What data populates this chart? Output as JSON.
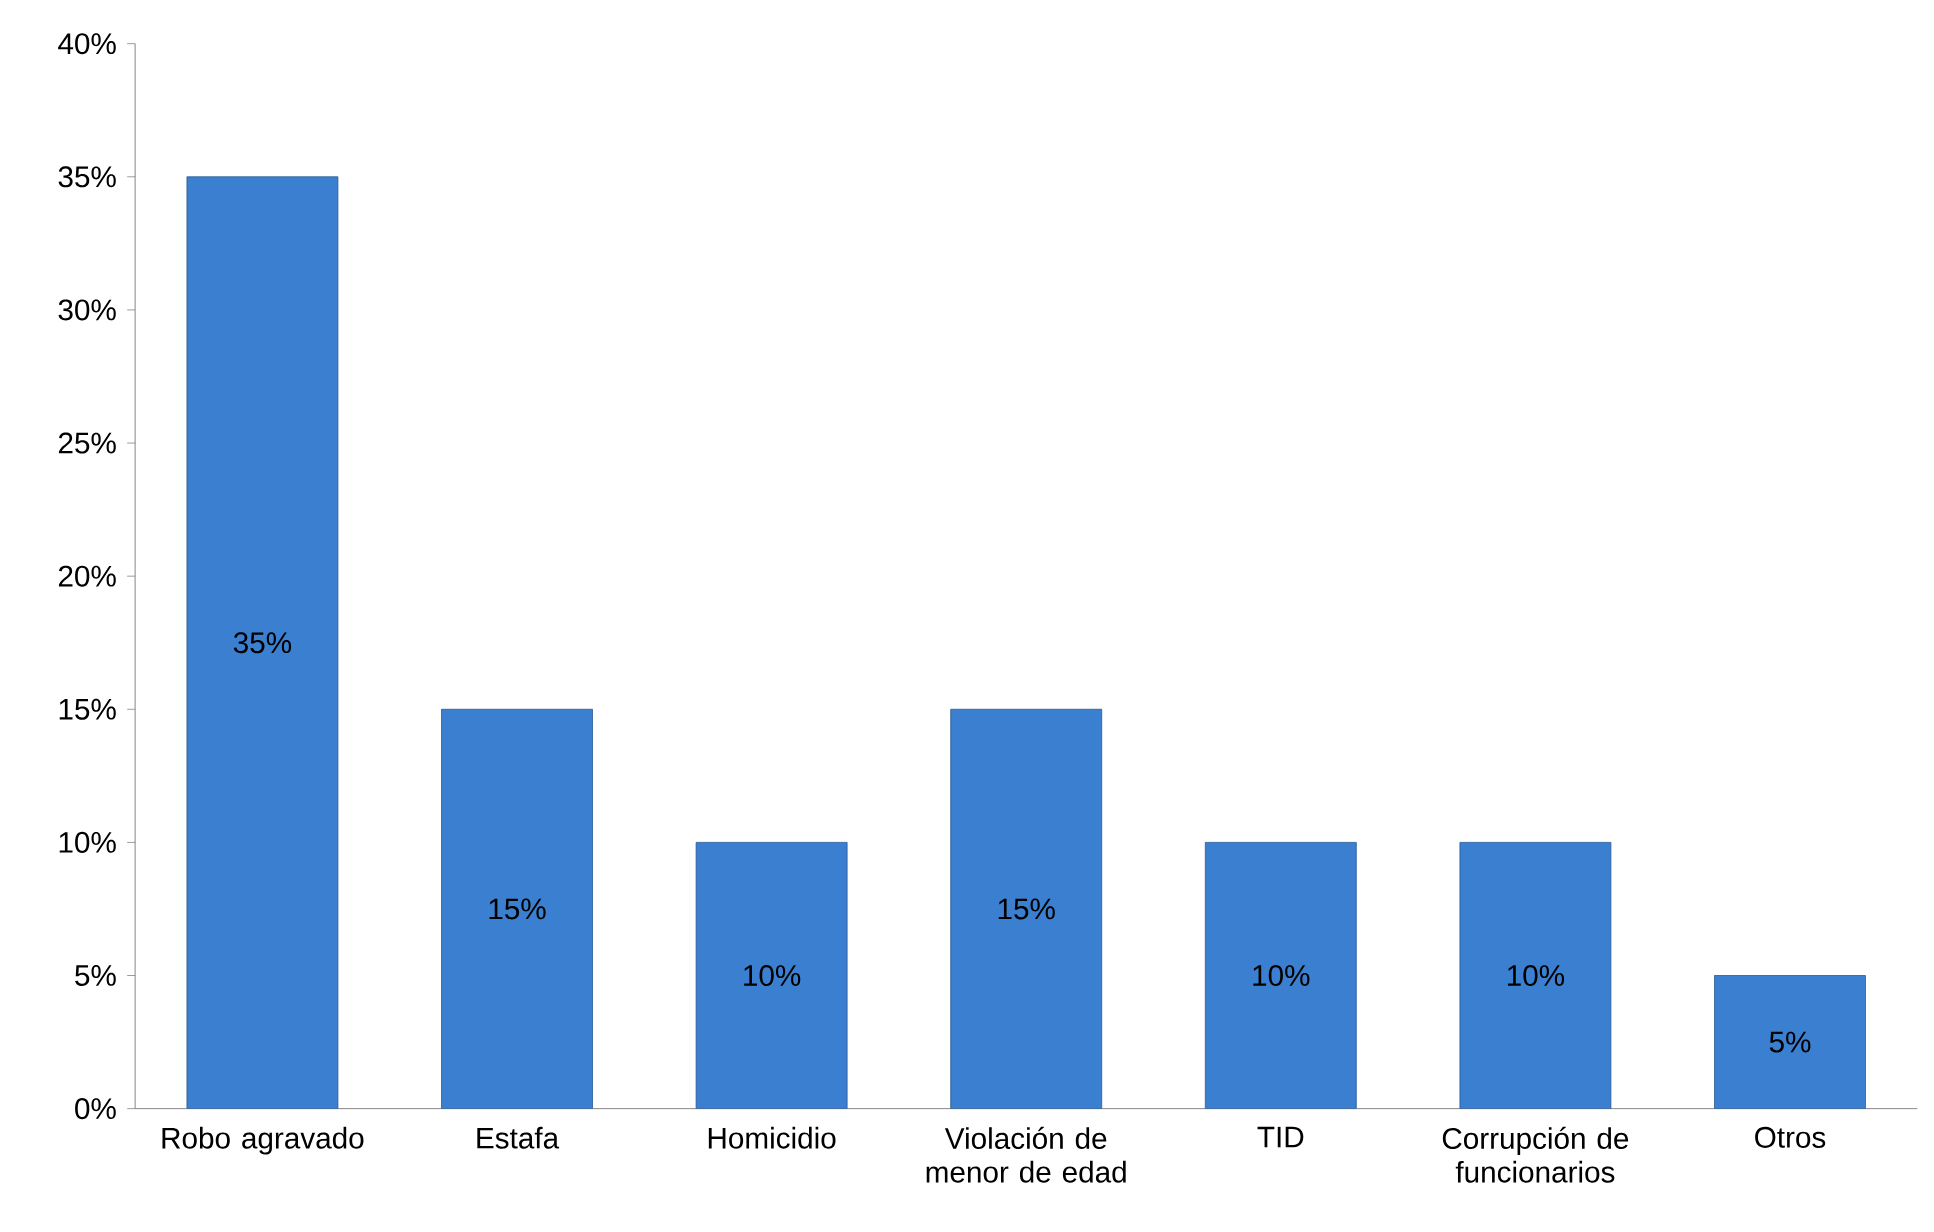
{
  "chart_data": {
    "type": "bar",
    "categories": [
      "Robo agravado",
      "Estafa",
      "Homicidio",
      "Violación de menor de edad",
      "TID",
      "Corrupción de funcionarios",
      "Otros"
    ],
    "values": [
      35,
      15,
      10,
      15,
      10,
      10,
      5
    ],
    "color": "#3b7fd0",
    "value_labels": [
      "35%",
      "15%",
      "10%",
      "15%",
      "10%",
      "10%",
      "5%"
    ],
    "ylim": [
      0,
      40
    ],
    "yticks": [
      {
        "value": 0,
        "label": "0%"
      },
      {
        "value": 5,
        "label": "5%"
      },
      {
        "value": 10,
        "label": "10%"
      },
      {
        "value": 15,
        "label": "15%"
      },
      {
        "value": 20,
        "label": "20%"
      },
      {
        "value": 25,
        "label": "25%"
      },
      {
        "value": 30,
        "label": "30%"
      },
      {
        "value": 35,
        "label": "35%"
      },
      {
        "value": 40,
        "label": "40%"
      }
    ]
  }
}
